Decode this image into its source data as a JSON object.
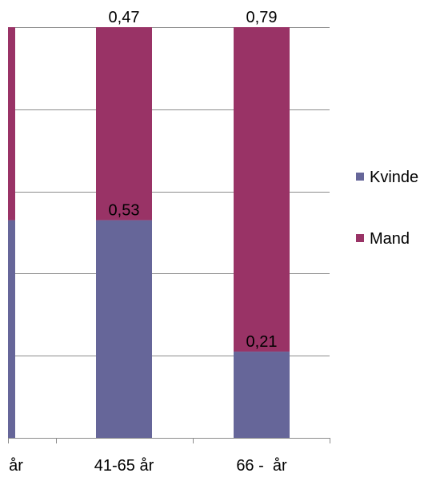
{
  "chart_data": {
    "type": "bar",
    "stacked": true,
    "normalized": true,
    "categories": [
      "år",
      "41-65 år",
      "66 -  år"
    ],
    "series": [
      {
        "name": "Kvinde",
        "color": "#666699",
        "values": [
          0.53,
          0.53,
          0.21
        ]
      },
      {
        "name": "Mand",
        "color": "#993366",
        "values": [
          0.47,
          0.47,
          0.79
        ]
      }
    ],
    "data_labels": [
      {
        "category": "41-65 år",
        "series": "Mand",
        "text": "0,47"
      },
      {
        "category": "66 -  år",
        "series": "Mand",
        "text": "0,79"
      },
      {
        "category": "41-65 år",
        "series": "Kvinde",
        "text": "0,53"
      },
      {
        "category": "66 -  år",
        "series": "Kvinde",
        "text": "0,21"
      }
    ],
    "ylim": [
      0,
      1
    ],
    "grid": true,
    "legend_position": "right"
  }
}
